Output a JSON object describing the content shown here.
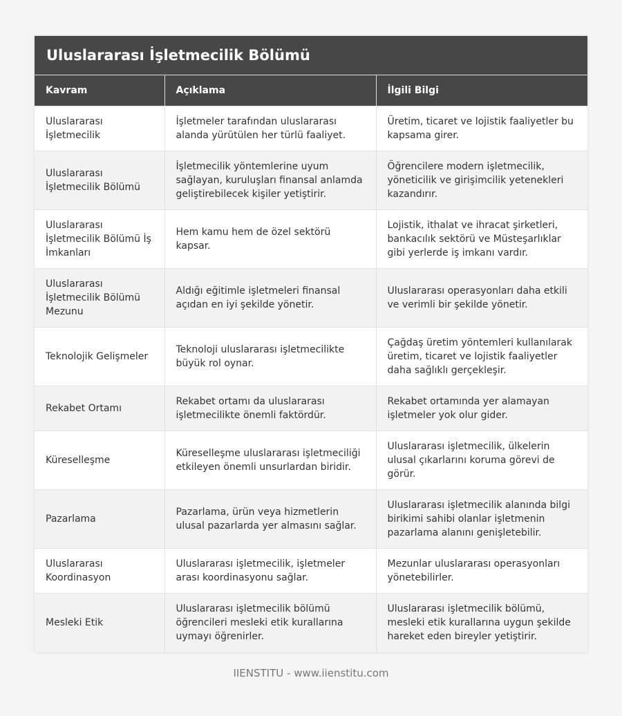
{
  "title": "Uluslararası İşletmecilik Bölümü",
  "headers": [
    "Kavram",
    "Açıklama",
    "İlgili Bilgi"
  ],
  "rows": [
    [
      "Uluslararası İşletmecilik",
      "İşletmeler tarafından uluslararası alanda yürütülen her türlü faaliyet.",
      "Üretim, ticaret ve lojistik faaliyetler bu kapsama girer."
    ],
    [
      "Uluslararası İşletmecilik Bölümü",
      "İşletmecilik yöntemlerine uyum sağlayan, kuruluşları finansal anlamda geliştirebilecek kişiler yetiştirir.",
      "Öğrencilere modern işletmecilik, yöneticilik ve girişimcilik yetenekleri kazandırır."
    ],
    [
      "Uluslararası İşletmecilik Bölümü İş İmkanları",
      "Hem kamu hem de özel sektörü kapsar.",
      "Lojistik, ithalat ve ihracat şirketleri, bankacılık sektörü ve Müsteşarlıklar gibi yerlerde iş imkanı vardır."
    ],
    [
      "Uluslararası İşletmecilik Bölümü Mezunu",
      "Aldığı eğitimle işletmeleri finansal açıdan en iyi şekilde yönetir.",
      "Uluslararası operasyonları daha etkili ve verimli bir şekilde yönetir."
    ],
    [
      "Teknolojik Gelişmeler",
      "Teknoloji uluslararası işletmecilikte büyük rol oynar.",
      "Çağdaş üretim yöntemleri kullanılarak üretim, ticaret ve lojistik faaliyetler daha sağlıklı gerçekleşir."
    ],
    [
      "Rekabet Ortamı",
      "Rekabet ortamı da uluslararası işletmecilikte önemli faktördür.",
      "Rekabet ortamında yer alamayan işletmeler yok olur gider."
    ],
    [
      "Küreselleşme",
      "Küreselleşme uluslararası işletmeciliği etkileyen önemli unsurlardan biridir.",
      "Uluslararası işletmecilik, ülkelerin ulusal çıkarlarını koruma görevi de görür."
    ],
    [
      "Pazarlama",
      "Pazarlama, ürün veya hizmetlerin ulusal pazarlarda yer almasını sağlar.",
      "Uluslararası işletmecilik alanında bilgi birikimi sahibi olanlar işletmenin pazarlama alanını genişletebilir."
    ],
    [
      "Uluslararası Koordinasyon",
      "Uluslararası işletmecilik, işletmeler arası koordinasyonu sağlar.",
      "Mezunlar uluslararası operasyonları yönetebilirler."
    ],
    [
      "Mesleki Etik",
      "Uluslararası işletmecilik bölümü öğrencileri mesleki etik kurallarına uymayı öğrenirler.",
      "Uluslararası işletmecilik bölümü, mesleki etik kurallarına uygun şekilde hareket eden bireyler yetiştirir."
    ]
  ],
  "footer": "IIENSTITU - www.iienstitu.com"
}
